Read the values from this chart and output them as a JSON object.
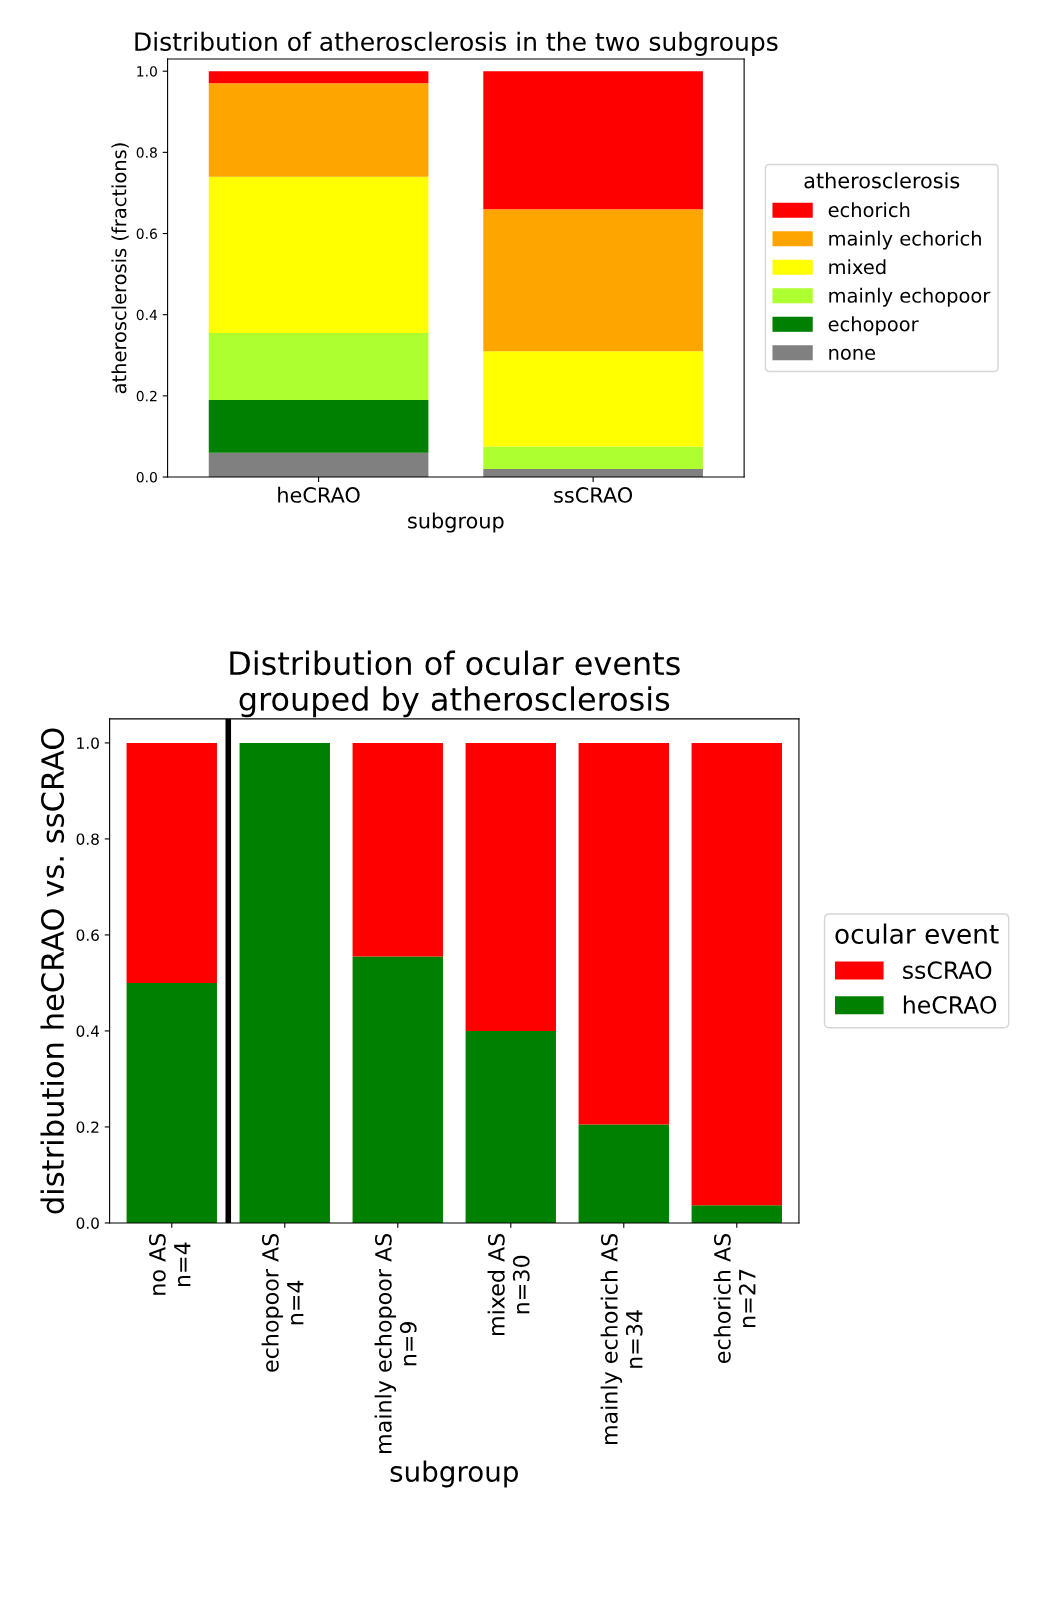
{
  "chart_data": [
    {
      "type": "bar",
      "title": "Distribution of atherosclerosis in the two subgroups",
      "xlabel": "subgroup",
      "ylabel": "atherosclerosis (fractions)",
      "categories": [
        "heCRAO",
        "ssCRAO"
      ],
      "stacked": true,
      "legend": "right",
      "legend_title": "atherosclerosis",
      "ylim": [
        0,
        1.03
      ],
      "yticks": [
        {
          "value": 0,
          "label": "0.0"
        },
        {
          "value": 0.2,
          "label": "0.2"
        },
        {
          "value": 0.4,
          "label": "0.4"
        },
        {
          "value": 0.6,
          "label": "0.6"
        },
        {
          "value": 0.8,
          "label": "0.8"
        },
        {
          "value": 1,
          "label": "1.0"
        }
      ],
      "series": [
        {
          "name": "none",
          "color": "#808080",
          "values": [
            0.06,
            0.02
          ]
        },
        {
          "name": "echopoor",
          "color": "#008000",
          "values": [
            0.13,
            0.0
          ]
        },
        {
          "name": "mainly echopoor",
          "color": "#adff2f",
          "values": [
            0.165,
            0.055
          ]
        },
        {
          "name": "mixed",
          "color": "#ffff00",
          "values": [
            0.385,
            0.235
          ]
        },
        {
          "name": "mainly echorich",
          "color": "#ffa500",
          "values": [
            0.23,
            0.35
          ]
        },
        {
          "name": "echorich",
          "color": "#ff0000",
          "values": [
            0.03,
            0.34
          ]
        }
      ]
    },
    {
      "type": "bar",
      "title": "Distribution of ocular events\ngrouped by atherosclerosis",
      "xlabel": "subgroup",
      "ylabel": "distribution heCRAO vs. ssCRAO",
      "categories": [
        "no AS\nn=4",
        "echopoor AS\nn=4",
        "mainly echopoor AS\nn=9",
        "mixed AS\nn=30",
        "mainly echorich AS\nn=34",
        "echorich AS\nn=27"
      ],
      "stacked": true,
      "legend": "right",
      "legend_title": "ocular event",
      "ylim": [
        0,
        1.05
      ],
      "yticks": [
        {
          "value": 0,
          "label": "0.0"
        },
        {
          "value": 0.2,
          "label": "0.2"
        },
        {
          "value": 0.4,
          "label": "0.4"
        },
        {
          "value": 0.6,
          "label": "0.6"
        },
        {
          "value": 0.8,
          "label": "0.8"
        },
        {
          "value": 1,
          "label": "1.0"
        }
      ],
      "series": [
        {
          "name": "heCRAO",
          "color": "#008000",
          "values": [
            0.5,
            1.0,
            0.555,
            0.4,
            0.205,
            0.037
          ]
        },
        {
          "name": "ssCRAO",
          "color": "#ff0000",
          "values": [
            0.5,
            0.0,
            0.445,
            0.6,
            0.795,
            0.963
          ]
        }
      ]
    }
  ]
}
